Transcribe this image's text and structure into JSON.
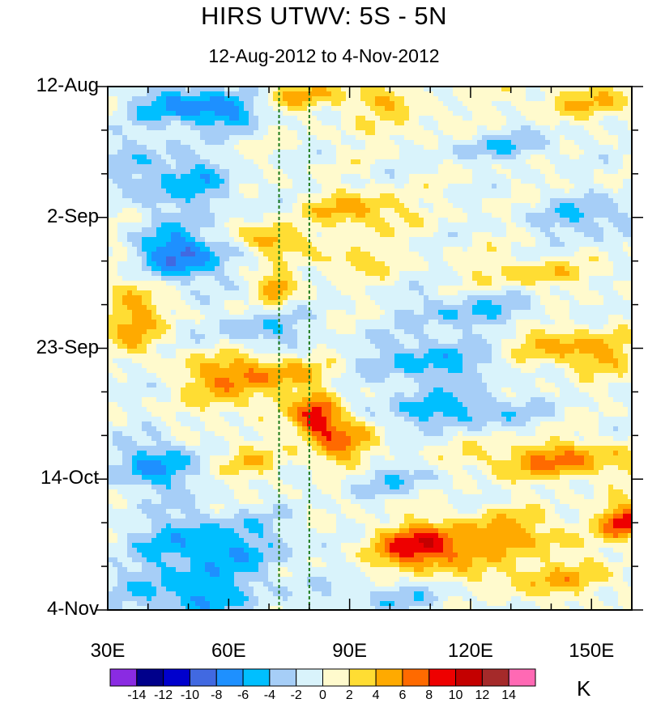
{
  "chart_data": {
    "type": "heatmap",
    "title": "HIRS UTWV: 5S - 5N",
    "subtitle": "12-Aug-2012 to 4-Nov-2012",
    "x_range": [
      30,
      160
    ],
    "x_ticks": [
      {
        "value": 30,
        "label": "30E"
      },
      {
        "value": 60,
        "label": "60E"
      },
      {
        "value": 90,
        "label": "90E"
      },
      {
        "value": 120,
        "label": "120E"
      },
      {
        "value": 150,
        "label": "150E"
      }
    ],
    "y_range_days": [
      0,
      84
    ],
    "y_ticks": [
      {
        "day": 0,
        "label": "12-Aug"
      },
      {
        "day": 21,
        "label": "2-Sep"
      },
      {
        "day": 42,
        "label": "23-Sep"
      },
      {
        "day": 63,
        "label": "14-Oct"
      },
      {
        "day": 84,
        "label": "4-Nov"
      }
    ],
    "reference_lines_lon": [
      72.5,
      80
    ],
    "colorbar": {
      "unit": "K",
      "levels": [
        -14,
        -12,
        -10,
        -8,
        -6,
        -4,
        -2,
        0,
        2,
        4,
        6,
        8,
        10,
        12,
        14
      ],
      "level_labels": [
        "-14",
        "-12",
        "-10",
        "-8",
        "-6",
        "-4",
        "-2",
        "0",
        "2",
        "4",
        "6",
        "8",
        "10",
        "12",
        "14"
      ],
      "colors": [
        "#8a2be2",
        "#00008b",
        "#0000cd",
        "#4169e1",
        "#1e90ff",
        "#00bfff",
        "#a6cef7",
        "#d9f3fb",
        "#fffacd",
        "#ffdd33",
        "#ffaa00",
        "#ff6a00",
        "#ee0000",
        "#c40000",
        "#a52a2a",
        "#ff69b4"
      ]
    },
    "features": [
      {
        "lon": 48,
        "day": 3,
        "amp": -6,
        "slon": 8,
        "sday": 2.5
      },
      {
        "lon": 60,
        "day": 4,
        "amp": -5,
        "slon": 6,
        "sday": 2
      },
      {
        "lon": 80,
        "day": 1.5,
        "amp": 4,
        "slon": 8,
        "sday": 1.5
      },
      {
        "lon": 98,
        "day": 2,
        "amp": 3.5,
        "slon": 6,
        "sday": 1.5
      },
      {
        "lon": 150,
        "day": 2.5,
        "amp": 3.5,
        "slon": 10,
        "sday": 2
      },
      {
        "lon": 110,
        "day": 7,
        "amp": 2.5,
        "slon": 12,
        "sday": 2
      },
      {
        "lon": 125,
        "day": 9,
        "amp": -4,
        "slon": 12,
        "sday": 2
      },
      {
        "lon": 40,
        "day": 14,
        "amp": -4,
        "slon": 8,
        "sday": 4
      },
      {
        "lon": 55,
        "day": 16,
        "amp": -4,
        "slon": 6,
        "sday": 3
      },
      {
        "lon": 92,
        "day": 20,
        "amp": 5,
        "slon": 8,
        "sday": 2
      },
      {
        "lon": 150,
        "day": 21,
        "amp": -4,
        "slon": 10,
        "sday": 2.5
      },
      {
        "lon": 48,
        "day": 27,
        "amp": -9,
        "slon": 7,
        "sday": 3
      },
      {
        "lon": 70,
        "day": 24.5,
        "amp": 6,
        "slon": 5,
        "sday": 1.5
      },
      {
        "lon": 90,
        "day": 28,
        "amp": 4,
        "slon": 6,
        "sday": 1.5
      },
      {
        "lon": 135,
        "day": 30,
        "amp": 3.5,
        "slon": 10,
        "sday": 1.5
      },
      {
        "lon": 72,
        "day": 32,
        "amp": 6,
        "slon": 3,
        "sday": 1.5
      },
      {
        "lon": 36,
        "day": 37,
        "amp": 5,
        "slon": 5,
        "sday": 5
      },
      {
        "lon": 120,
        "day": 36,
        "amp": -4,
        "slon": 12,
        "sday": 2
      },
      {
        "lon": 68,
        "day": 39,
        "amp": -4,
        "slon": 8,
        "sday": 2
      },
      {
        "lon": 140,
        "day": 41,
        "amp": 3,
        "slon": 10,
        "sday": 2
      },
      {
        "lon": 110,
        "day": 44,
        "amp": -5,
        "slon": 12,
        "sday": 3
      },
      {
        "lon": 150,
        "day": 43,
        "amp": 4,
        "slon": 8,
        "sday": 2
      },
      {
        "lon": 65,
        "day": 46,
        "amp": 6,
        "slon": 12,
        "sday": 2
      },
      {
        "lon": 35,
        "day": 46,
        "amp": -3,
        "slon": 5,
        "sday": 2
      },
      {
        "lon": 82,
        "day": 53,
        "amp": 9,
        "slon": 4,
        "sday": 2.5
      },
      {
        "lon": 88,
        "day": 57,
        "amp": 6,
        "slon": 5,
        "sday": 3
      },
      {
        "lon": 62,
        "day": 50,
        "amp": 3,
        "slon": 8,
        "sday": 2
      },
      {
        "lon": 115,
        "day": 52,
        "amp": -5,
        "slon": 14,
        "sday": 2
      },
      {
        "lon": 142,
        "day": 60,
        "amp": 6,
        "slon": 14,
        "sday": 2
      },
      {
        "lon": 42,
        "day": 61,
        "amp": -7,
        "slon": 6,
        "sday": 3
      },
      {
        "lon": 65,
        "day": 60,
        "amp": 3,
        "slon": 6,
        "sday": 2
      },
      {
        "lon": 100,
        "day": 63,
        "amp": -3,
        "slon": 10,
        "sday": 2
      },
      {
        "lon": 108,
        "day": 74,
        "amp": 10,
        "slon": 8,
        "sday": 2.5
      },
      {
        "lon": 130,
        "day": 72,
        "amp": 5,
        "slon": 10,
        "sday": 2.5
      },
      {
        "lon": 158,
        "day": 70,
        "amp": 9,
        "slon": 4,
        "sday": 2
      },
      {
        "lon": 55,
        "day": 74,
        "amp": -6,
        "slon": 14,
        "sday": 4
      },
      {
        "lon": 50,
        "day": 82,
        "amp": -5,
        "slon": 12,
        "sday": 2.5
      },
      {
        "lon": 140,
        "day": 79,
        "amp": 4,
        "slon": 12,
        "sday": 2
      },
      {
        "lon": 100,
        "day": 82,
        "amp": -3,
        "slon": 12,
        "sday": 2
      }
    ]
  }
}
